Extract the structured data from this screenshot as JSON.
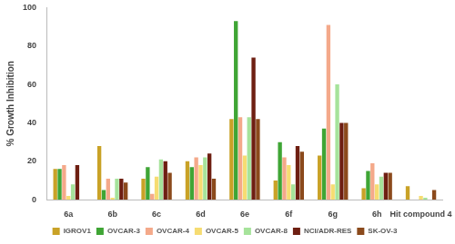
{
  "chart_data": {
    "type": "bar",
    "y_label": "% Growth Inhibition",
    "categories": [
      "6a",
      "6b",
      "6c",
      "6d",
      "6e",
      "6f",
      "6g",
      "6h",
      "Hit compound 4"
    ],
    "series": [
      {
        "name": "IGROV1",
        "color": "#c9a227",
        "values": [
          16,
          28,
          11,
          20,
          42,
          10,
          23,
          6,
          7
        ]
      },
      {
        "name": "OVCAR-3",
        "color": "#3fa535",
        "values": [
          16,
          5,
          17,
          17,
          93,
          30,
          37,
          15,
          0
        ]
      },
      {
        "name": "OVCAR-4",
        "color": "#f4a98a",
        "values": [
          18,
          11,
          3,
          22,
          43,
          22,
          91,
          19,
          0
        ]
      },
      {
        "name": "OVCAR-5",
        "color": "#f6dc72",
        "values": [
          2,
          1,
          12,
          18,
          23,
          18,
          8,
          8,
          2
        ]
      },
      {
        "name": "OVCAR-8",
        "color": "#a6e39b",
        "values": [
          8,
          11,
          21,
          22,
          43,
          8,
          60,
          12,
          1
        ]
      },
      {
        "name": "NCI/ADR-RES",
        "color": "#6e1f12",
        "values": [
          18,
          11,
          20,
          24,
          74,
          28,
          40,
          14,
          0
        ]
      },
      {
        "name": "SK-OV-3",
        "color": "#8b4a1c",
        "values": [
          0,
          9,
          14,
          11,
          42,
          25,
          40,
          14,
          5
        ]
      }
    ],
    "ylim": [
      0,
      100
    ],
    "yticks": [
      0,
      20,
      40,
      60,
      80,
      100
    ],
    "grid": false,
    "legend": "bottom"
  }
}
